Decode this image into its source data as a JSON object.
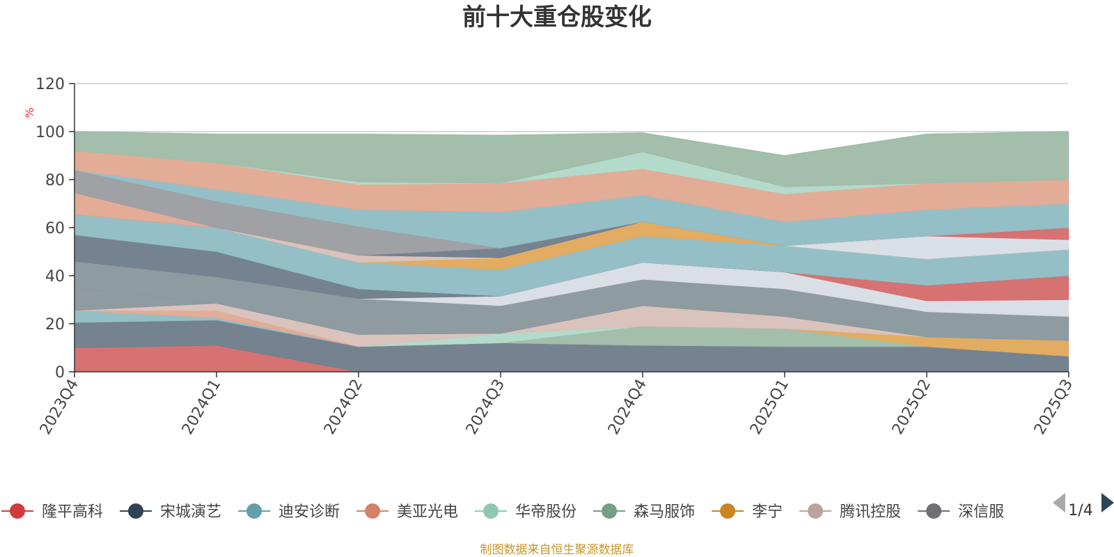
{
  "chart_data": {
    "type": "area",
    "stacked": true,
    "title": "前十大重仓股变化",
    "ylabel": "%",
    "ylim": [
      0,
      120
    ],
    "yticks": [
      0,
      20,
      40,
      60,
      80,
      100,
      120
    ],
    "grid": true,
    "legend_position": "bottom",
    "categories": [
      "2023Q4",
      "2024Q1",
      "2024Q2",
      "2024Q3",
      "2024Q4",
      "2025Q1",
      "2025Q2",
      "2025Q3"
    ],
    "series": [
      {
        "name": "隆平高科",
        "color": "#d46a6a",
        "values": [
          10,
          11,
          0,
          0,
          0,
          0,
          0,
          0
        ]
      },
      {
        "name": "宋城演艺",
        "color": "#6e7c8a",
        "values": [
          10.5,
          10.5,
          10.5,
          12,
          11,
          10.5,
          10.5,
          6.5
        ]
      },
      {
        "name": "迪安诊断",
        "color": "#8fbcc4",
        "values": [
          5,
          1,
          0,
          0,
          0,
          0,
          0,
          0
        ]
      },
      {
        "name": "森马服饰",
        "color": "#9ebaa6",
        "values": [
          0,
          0,
          0,
          0,
          8,
          7.5,
          0,
          0
        ]
      },
      {
        "name": "华帝股份",
        "color": "#b0d8c8",
        "values": [
          0,
          0,
          0,
          4,
          0,
          0,
          0,
          0
        ]
      },
      {
        "name": "李宁",
        "color": "#e0a85a",
        "values": [
          0,
          0,
          0,
          0,
          0,
          0,
          4,
          6.5
        ]
      },
      {
        "name": "美亚光电",
        "color": "#e0a890",
        "values": [
          0,
          3,
          0,
          0,
          0,
          0,
          0,
          0
        ]
      },
      {
        "name": "腾讯控股",
        "color": "#d8c0b8",
        "values": [
          0,
          3,
          5,
          0,
          8.5,
          5,
          0,
          0
        ]
      },
      {
        "name": "深信服",
        "color": "#8a969c",
        "values": [
          9.5,
          0,
          0,
          0,
          0,
          0,
          0,
          0
        ]
      },
      {
        "name": "",
        "color": "#88969c",
        "values": [
          11,
          11,
          15,
          11.5,
          11,
          11.5,
          10.5,
          10
        ]
      },
      {
        "name": "",
        "color": "#d8dde4",
        "values": [
          0,
          0,
          0,
          4,
          7,
          7,
          4.5,
          7
        ]
      },
      {
        "name": "",
        "color": "#d46a6a",
        "values": [
          0,
          0,
          0,
          0,
          0,
          0,
          6.5,
          10
        ]
      },
      {
        "name": "",
        "color": "#6e7c8a",
        "values": [
          11,
          10.5,
          4,
          0,
          0,
          0,
          0,
          0
        ]
      },
      {
        "name": "",
        "color": "#8fbcc4",
        "values": [
          8.5,
          10,
          11,
          11,
          11,
          11,
          11,
          11
        ]
      },
      {
        "name": "",
        "color": "#e0a85a",
        "values": [
          0,
          0,
          0,
          5,
          6,
          0,
          0,
          0
        ]
      },
      {
        "name": "",
        "color": "#d8c0b8",
        "values": [
          0,
          0,
          3,
          0,
          0,
          0,
          0,
          0
        ]
      },
      {
        "name": "",
        "color": "#d8dde4",
        "values": [
          0,
          0,
          0,
          0,
          0,
          0,
          9.5,
          4
        ]
      },
      {
        "name": "",
        "color": "#d46a6a",
        "values": [
          0,
          0,
          0,
          0,
          0,
          0,
          0,
          5
        ]
      },
      {
        "name": "",
        "color": "#6e7c8a",
        "values": [
          0,
          0,
          0,
          4,
          0,
          0,
          0,
          0
        ]
      },
      {
        "name": "",
        "color": "#e0a890",
        "values": [
          9,
          0,
          0,
          0,
          0,
          0,
          0,
          0
        ]
      },
      {
        "name": "",
        "color": "#9a9ca0",
        "values": [
          9.5,
          11,
          12,
          0,
          0,
          0,
          0,
          0
        ]
      },
      {
        "name": "",
        "color": "#8fbcc4",
        "values": [
          0,
          5,
          7,
          15,
          11,
          10,
          11,
          10
        ]
      },
      {
        "name": "",
        "color": "#e0a890",
        "values": [
          8,
          11,
          10.5,
          12,
          11,
          11.5,
          11,
          10
        ]
      },
      {
        "name": "",
        "color": "#b0d8c8",
        "values": [
          0,
          0,
          1,
          0,
          7,
          3,
          0,
          0
        ]
      },
      {
        "name": "",
        "color": "#9ebaa6",
        "values": [
          8,
          12,
          20,
          20,
          8,
          13,
          20.5,
          20
        ]
      }
    ]
  },
  "legend": {
    "items": [
      {
        "name": "隆平高科",
        "color": "#d03b3b"
      },
      {
        "name": "宋城演艺",
        "color": "#2f4554"
      },
      {
        "name": "迪安诊断",
        "color": "#61a0a8"
      },
      {
        "name": "美亚光电",
        "color": "#d48265"
      },
      {
        "name": "华帝股份",
        "color": "#91c7ae"
      },
      {
        "name": "森马服饰",
        "color": "#749f83"
      },
      {
        "name": "李宁",
        "color": "#ca8622"
      },
      {
        "name": "腾讯控股",
        "color": "#bda29a"
      },
      {
        "name": "深信服",
        "color": "#6e7074"
      }
    ],
    "page_label": "1/4"
  },
  "footer": {
    "source_text": "制图数据来自恒生聚源数据库"
  }
}
